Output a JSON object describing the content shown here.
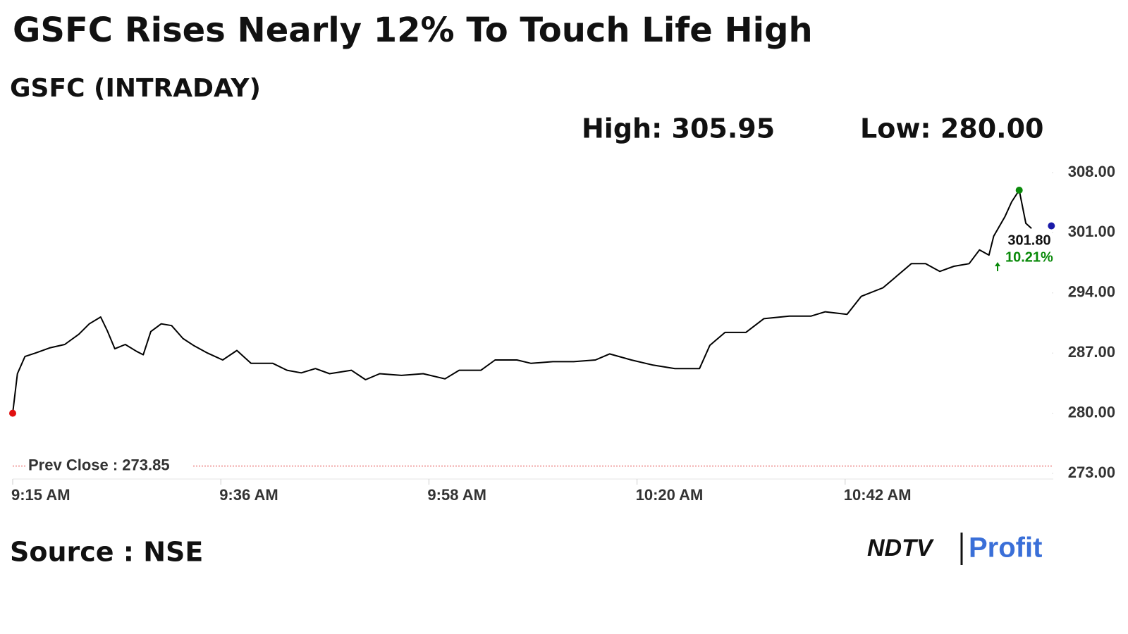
{
  "chart_data": {
    "type": "line",
    "title": "GSFC Rises Nearly 12% To Touch Life High",
    "subtitle": "GSFC (INTRADAY)",
    "high": {
      "value": 305.95,
      "label": "High: 305.95"
    },
    "low": {
      "value": 280.0,
      "label": "Low: 280.00"
    },
    "prev_close": {
      "value": 273.85,
      "label": "Prev Close : 273.85"
    },
    "last_price": {
      "value": 301.8,
      "label": "301.80"
    },
    "change": {
      "value": 10.21,
      "label": "10.21%"
    },
    "source": "Source : NSE",
    "logo": [
      "NDTV",
      "Profit"
    ],
    "color": "#000000",
    "x": [
      0,
      0.5,
      1.3,
      2.4,
      3.9,
      5.5,
      7,
      8.1,
      9.3,
      10,
      10.8,
      11.9,
      13.1,
      13.8,
      14.6,
      15.7,
      16.8,
      18,
      19.1,
      20.6,
      22.2,
      23.7,
      25.2,
      27.5,
      29,
      30.5,
      32,
      33.5,
      35.8,
      37.3,
      38.8,
      41.1,
      43.4,
      45.7,
      47.2,
      49.5,
      51,
      53.3,
      54.8,
      57.1,
      59.3,
      61.6,
      63.1,
      65.4,
      67.7,
      70,
      72.6,
      73.7,
      75.3,
      77.5,
      79.4,
      82.1,
      84.4,
      85.9,
      88.2,
      89.7,
      92,
      93.5,
      95,
      96.5,
      98,
      99.5,
      101.1,
      102.2,
      103.2,
      103.7,
      104.9,
      105.6,
      106.4,
      107.1,
      107.7
    ],
    "values": [
      280,
      284.6,
      286.6,
      287,
      287.6,
      288,
      289.2,
      290.4,
      291.2,
      289.6,
      287.5,
      288,
      287.2,
      286.8,
      289.5,
      290.4,
      290.2,
      288.7,
      287.9,
      287,
      286.2,
      287.3,
      285.8,
      285.8,
      285,
      284.7,
      285.2,
      284.6,
      285,
      283.9,
      284.6,
      284.4,
      284.6,
      284,
      285,
      285,
      286.2,
      286.2,
      285.8,
      286,
      286,
      286.2,
      286.9,
      286.2,
      285.6,
      285.2,
      285.2,
      287.9,
      289.4,
      289.4,
      291,
      291.3,
      291.3,
      291.8,
      291.5,
      293.6,
      294.6,
      296,
      297.4,
      297.4,
      296.5,
      297.1,
      297.4,
      299,
      298.4,
      300.6,
      302.9,
      304.6,
      305.95,
      302.1,
      301.5
    ],
    "markers": [
      {
        "x": 0,
        "value": 280,
        "color": "#e01010"
      },
      {
        "x": 106.4,
        "value": 305.95,
        "color": "#0a8a0a"
      },
      {
        "x": 109.8,
        "value": 301.8,
        "color": "#1a1aa8"
      }
    ],
    "xlim": [
      0,
      110
    ],
    "xticks": [
      {
        "value": 0,
        "label": "9:15 AM"
      },
      {
        "value": 22,
        "label": "9:36 AM"
      },
      {
        "value": 44,
        "label": "9:58 AM"
      },
      {
        "value": 66,
        "label": "10:20 AM"
      },
      {
        "value": 88,
        "label": "10:42 AM"
      }
    ],
    "ylim": [
      273,
      308
    ],
    "yticks": [
      {
        "value": 273,
        "label": "273.00"
      },
      {
        "value": 280,
        "label": "280.00"
      },
      {
        "value": 287,
        "label": "287.00"
      },
      {
        "value": 294,
        "label": "294.00"
      },
      {
        "value": 301,
        "label": "301.00"
      },
      {
        "value": 308,
        "label": "308.00"
      }
    ]
  }
}
